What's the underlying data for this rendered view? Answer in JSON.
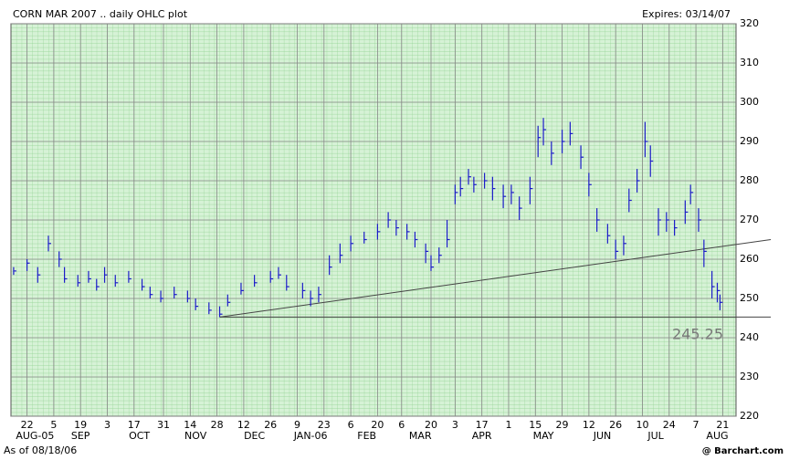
{
  "chart_data": {
    "type": "ohlc",
    "title": "CORN MAR 2007 .. daily OHLC plot",
    "expires": "Expires: 03/14/07",
    "as_of": "As of 08/18/06",
    "source": "@ Barchart.com",
    "level_label": "245.25",
    "color": "#1c1cc8",
    "ylim": [
      220,
      320
    ],
    "yticks": [
      220,
      230,
      240,
      250,
      260,
      270,
      280,
      290,
      300,
      310,
      320
    ],
    "xlim": [
      0,
      271
    ],
    "xticks": [
      {
        "value": 6,
        "label": "22"
      },
      {
        "value": 16,
        "label": "5"
      },
      {
        "value": 26,
        "label": "19"
      },
      {
        "value": 36,
        "label": "3"
      },
      {
        "value": 46,
        "label": "17"
      },
      {
        "value": 57,
        "label": "31"
      },
      {
        "value": 67,
        "label": "14"
      },
      {
        "value": 77,
        "label": "28"
      },
      {
        "value": 87,
        "label": "12"
      },
      {
        "value": 97,
        "label": "26"
      },
      {
        "value": 107,
        "label": "9"
      },
      {
        "value": 117,
        "label": "23"
      },
      {
        "value": 127,
        "label": "6"
      },
      {
        "value": 137,
        "label": "20"
      },
      {
        "value": 146,
        "label": "6"
      },
      {
        "value": 157,
        "label": "20"
      },
      {
        "value": 166,
        "label": "3"
      },
      {
        "value": 176,
        "label": "17"
      },
      {
        "value": 186,
        "label": "1"
      },
      {
        "value": 196,
        "label": "15"
      },
      {
        "value": 206,
        "label": "29"
      },
      {
        "value": 216,
        "label": "12"
      },
      {
        "value": 226,
        "label": "26"
      },
      {
        "value": 236,
        "label": "10"
      },
      {
        "value": 246,
        "label": "24"
      },
      {
        "value": 256,
        "label": "7"
      },
      {
        "value": 266,
        "label": "21"
      }
    ],
    "month_ticks": [
      {
        "value": 9,
        "label": "AUG-05"
      },
      {
        "value": 26,
        "label": "SEP"
      },
      {
        "value": 48,
        "label": "OCT"
      },
      {
        "value": 69,
        "label": "NOV"
      },
      {
        "value": 91,
        "label": "DEC"
      },
      {
        "value": 112,
        "label": "JAN-06"
      },
      {
        "value": 133,
        "label": "FEB"
      },
      {
        "value": 153,
        "label": "MAR"
      },
      {
        "value": 176,
        "label": "APR"
      },
      {
        "value": 199,
        "label": "MAY"
      },
      {
        "value": 221,
        "label": "JUN"
      },
      {
        "value": 241,
        "label": "JUL"
      },
      {
        "value": 264,
        "label": "AUG"
      }
    ],
    "x": [
      1,
      6,
      10,
      14,
      18,
      20,
      25,
      29,
      32,
      35,
      39,
      44,
      49,
      52,
      56,
      61,
      66,
      69,
      74,
      78,
      81,
      86,
      91,
      97,
      100,
      103,
      109,
      112,
      115,
      119,
      123,
      127,
      132,
      137,
      141,
      144,
      148,
      151,
      155,
      157,
      160,
      163,
      166,
      168,
      171,
      173,
      177,
      180,
      184,
      187,
      190,
      194,
      197,
      199,
      202,
      206,
      209,
      213,
      216,
      219,
      223,
      226,
      229,
      231,
      234,
      237,
      239,
      242,
      245,
      248,
      252,
      254,
      257,
      259,
      262,
      264,
      265
    ],
    "high": [
      258,
      260,
      258,
      266,
      262,
      258,
      256,
      257,
      255,
      258,
      256,
      257,
      255,
      253,
      252,
      253,
      252,
      250,
      249,
      248,
      251,
      254,
      256,
      257,
      258,
      256,
      254,
      252,
      253,
      261,
      264,
      266,
      267,
      269,
      272,
      270,
      269,
      267,
      264,
      261,
      263,
      270,
      279,
      281,
      283,
      281,
      282,
      281,
      279,
      279,
      276,
      281,
      294,
      296,
      290,
      293,
      295,
      289,
      282,
      273,
      269,
      265,
      266,
      278,
      283,
      295,
      289,
      273,
      272,
      270,
      275,
      279,
      273,
      265,
      257,
      254,
      251
    ],
    "low": [
      256,
      257,
      254,
      262,
      258,
      254,
      253,
      254,
      252,
      254,
      253,
      254,
      252,
      250,
      249,
      250,
      249,
      247,
      246,
      245.25,
      248,
      251,
      253,
      254,
      255,
      252,
      250,
      248,
      249,
      256,
      259,
      262,
      264,
      265,
      268,
      266,
      265,
      263,
      259,
      257,
      259,
      263,
      274,
      276,
      279,
      277,
      278,
      275,
      273,
      274,
      270,
      274,
      286,
      289,
      284,
      287,
      289,
      283,
      276,
      267,
      264,
      260,
      261,
      272,
      277,
      286,
      281,
      266,
      267,
      266,
      269,
      274,
      267,
      258,
      250,
      249,
      247
    ],
    "close": [
      257,
      259,
      256,
      264,
      260,
      255,
      254,
      255,
      253,
      256,
      254,
      255,
      253,
      251,
      250,
      251,
      250,
      248,
      247,
      246,
      249,
      252,
      254,
      255,
      256,
      253,
      252,
      250,
      251,
      258,
      261,
      264,
      265,
      267,
      270,
      268,
      267,
      265,
      262,
      258,
      261,
      265,
      277,
      278,
      281,
      279,
      280,
      278,
      276,
      277,
      273,
      278,
      291,
      293,
      287,
      290,
      292,
      286,
      279,
      270,
      266,
      262,
      264,
      275,
      280,
      290,
      285,
      270,
      270,
      268,
      272,
      277,
      270,
      262,
      253,
      252,
      249
    ],
    "trend_lines": [
      {
        "x": [
          78,
          284
        ],
        "y": [
          245.25,
          245.25
        ]
      },
      {
        "x": [
          78,
          284
        ],
        "y": [
          245.25,
          265
        ]
      }
    ]
  }
}
